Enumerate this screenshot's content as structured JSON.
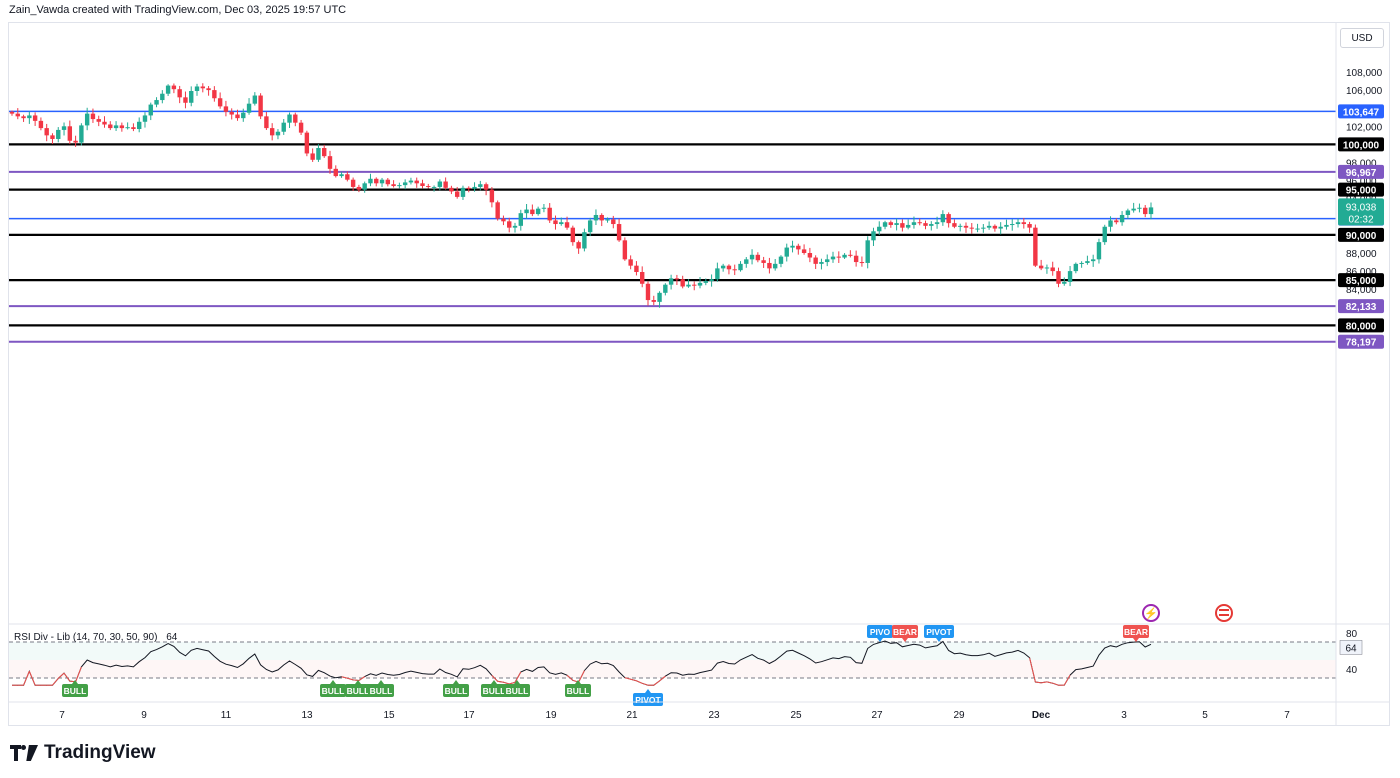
{
  "header": {
    "attribution": "Zain_Vawda created with TradingView.com, Dec 03, 2025 19:57 UTC"
  },
  "currency_button": "USD",
  "footer": {
    "brand": "TradingView"
  },
  "indicator": {
    "name": "RSI Div - Lib (14, 70, 30, 50, 90)",
    "value_text": "64"
  },
  "colors": {
    "up": "#26a69a",
    "up_candle": "#22ab94",
    "down": "#f23645",
    "blue_line": "#2962ff",
    "purple_line": "#7e57c2",
    "black_line": "#000000",
    "bull_badge": "#43a047",
    "bear_badge": "#ef5350",
    "pivot_badge": "#2196f3"
  },
  "chart_data": {
    "type": "candlestick",
    "title": "",
    "ylim": [
      78197,
      109500
    ],
    "y_ticks": [
      "108,000",
      "106,000",
      "104,000",
      "102,000",
      "98,000",
      "96,000",
      "94,000",
      "88,000",
      "86,000",
      "84,000"
    ],
    "x_ticks": [
      "7",
      "9",
      "11",
      "13",
      "15",
      "17",
      "19",
      "21",
      "23",
      "25",
      "27",
      "29",
      "Dec",
      "3",
      "5",
      "7"
    ],
    "horizontal_levels": [
      {
        "price": 103647,
        "label": "103,647",
        "color": "#2962ff"
      },
      {
        "price": 100000,
        "label": "100,000",
        "color": "#000000"
      },
      {
        "price": 96967,
        "label": "96,967",
        "color": "#7e57c2"
      },
      {
        "price": 95000,
        "label": "95,000",
        "color": "#000000"
      },
      {
        "price": 91804,
        "label": "91,804",
        "color": "#2962ff"
      },
      {
        "price": 90000,
        "label": "90,000",
        "color": "#000000"
      },
      {
        "price": 85000,
        "label": "85,000",
        "color": "#000000"
      },
      {
        "price": 82133,
        "label": "82,133",
        "color": "#7e57c2"
      },
      {
        "price": 80000,
        "label": "80,000",
        "color": "#000000"
      },
      {
        "price": 78197,
        "label": "78,197",
        "color": "#7e57c2"
      }
    ],
    "last_price": {
      "label": "93,038",
      "countdown": "02:32"
    },
    "closes": [
      103400,
      103100,
      102900,
      103200,
      102600,
      101800,
      101000,
      100600,
      101600,
      102000,
      100400,
      100200,
      102100,
      103400,
      102800,
      102500,
      102200,
      101800,
      102100,
      101800,
      101900,
      101700,
      102500,
      103200,
      104400,
      104900,
      105600,
      106500,
      106100,
      105200,
      104600,
      105900,
      106400,
      106200,
      106000,
      105100,
      104200,
      103600,
      103300,
      102900,
      103500,
      104500,
      105400,
      103100,
      101800,
      101000,
      101400,
      102400,
      103300,
      102400,
      101300,
      99000,
      98300,
      99600,
      98700,
      97300,
      96500,
      96700,
      96100,
      95300,
      95000,
      95700,
      96200,
      95700,
      96100,
      95600,
      95400,
      95500,
      95800,
      96000,
      95700,
      95400,
      95300,
      95300,
      95900,
      95200,
      94800,
      94200,
      95200,
      95100,
      95300,
      95600,
      95000,
      93600,
      91800,
      91500,
      90800,
      91000,
      92400,
      92800,
      92300,
      92900,
      93000,
      91600,
      91200,
      91400,
      90800,
      89200,
      88500,
      90300,
      91600,
      92200,
      91600,
      91700,
      91200,
      89400,
      87300,
      86600,
      85900,
      84600,
      82800,
      82600,
      83600,
      84500,
      85200,
      85100,
      84300,
      84500,
      84400,
      84700,
      84900,
      85100,
      86300,
      86600,
      86200,
      86100,
      86800,
      87300,
      87800,
      87200,
      86900,
      86300,
      86800,
      87600,
      88600,
      88800,
      88400,
      88000,
      87500,
      86800,
      87000,
      87300,
      87600,
      87500,
      87800,
      87700,
      87000,
      86900,
      89400,
      90400,
      90900,
      91400,
      91100,
      91300,
      90800,
      91100,
      91400,
      91300,
      91000,
      91200,
      91400,
      92300,
      91300,
      90900,
      91000,
      90800,
      90700,
      90700,
      90800,
      91000,
      90700,
      90900,
      91100,
      91200,
      91400,
      91200,
      90800,
      86600,
      86300,
      86400,
      86000,
      84600,
      84800,
      86000,
      86800,
      86900,
      87100,
      87300,
      89200,
      90900,
      91600,
      91400,
      92200,
      92700,
      92900,
      93000,
      92300,
      93038
    ],
    "rsi": {
      "ylim": [
        20,
        90
      ],
      "levels": [
        80,
        64,
        40
      ],
      "upper_band": 70,
      "lower_band": 30,
      "current": 64
    },
    "annotations": [
      {
        "text": "BULL",
        "series": "rsi"
      },
      {
        "text": "BULL",
        "series": "rsi"
      },
      {
        "text": "BULL",
        "series": "rsi"
      },
      {
        "text": "BULL",
        "series": "rsi"
      },
      {
        "text": "BULL",
        "series": "rsi"
      },
      {
        "text": "BULL",
        "series": "rsi"
      },
      {
        "text": "BULL",
        "series": "rsi"
      },
      {
        "text": "BULL",
        "series": "rsi"
      },
      {
        "text": "PIVOT",
        "series": "rsi"
      },
      {
        "text": "PIVO",
        "series": "rsi"
      },
      {
        "text": "BEAR",
        "series": "rsi"
      },
      {
        "text": "PIVOT",
        "series": "rsi"
      },
      {
        "text": "BEAR",
        "series": "rsi"
      }
    ]
  }
}
